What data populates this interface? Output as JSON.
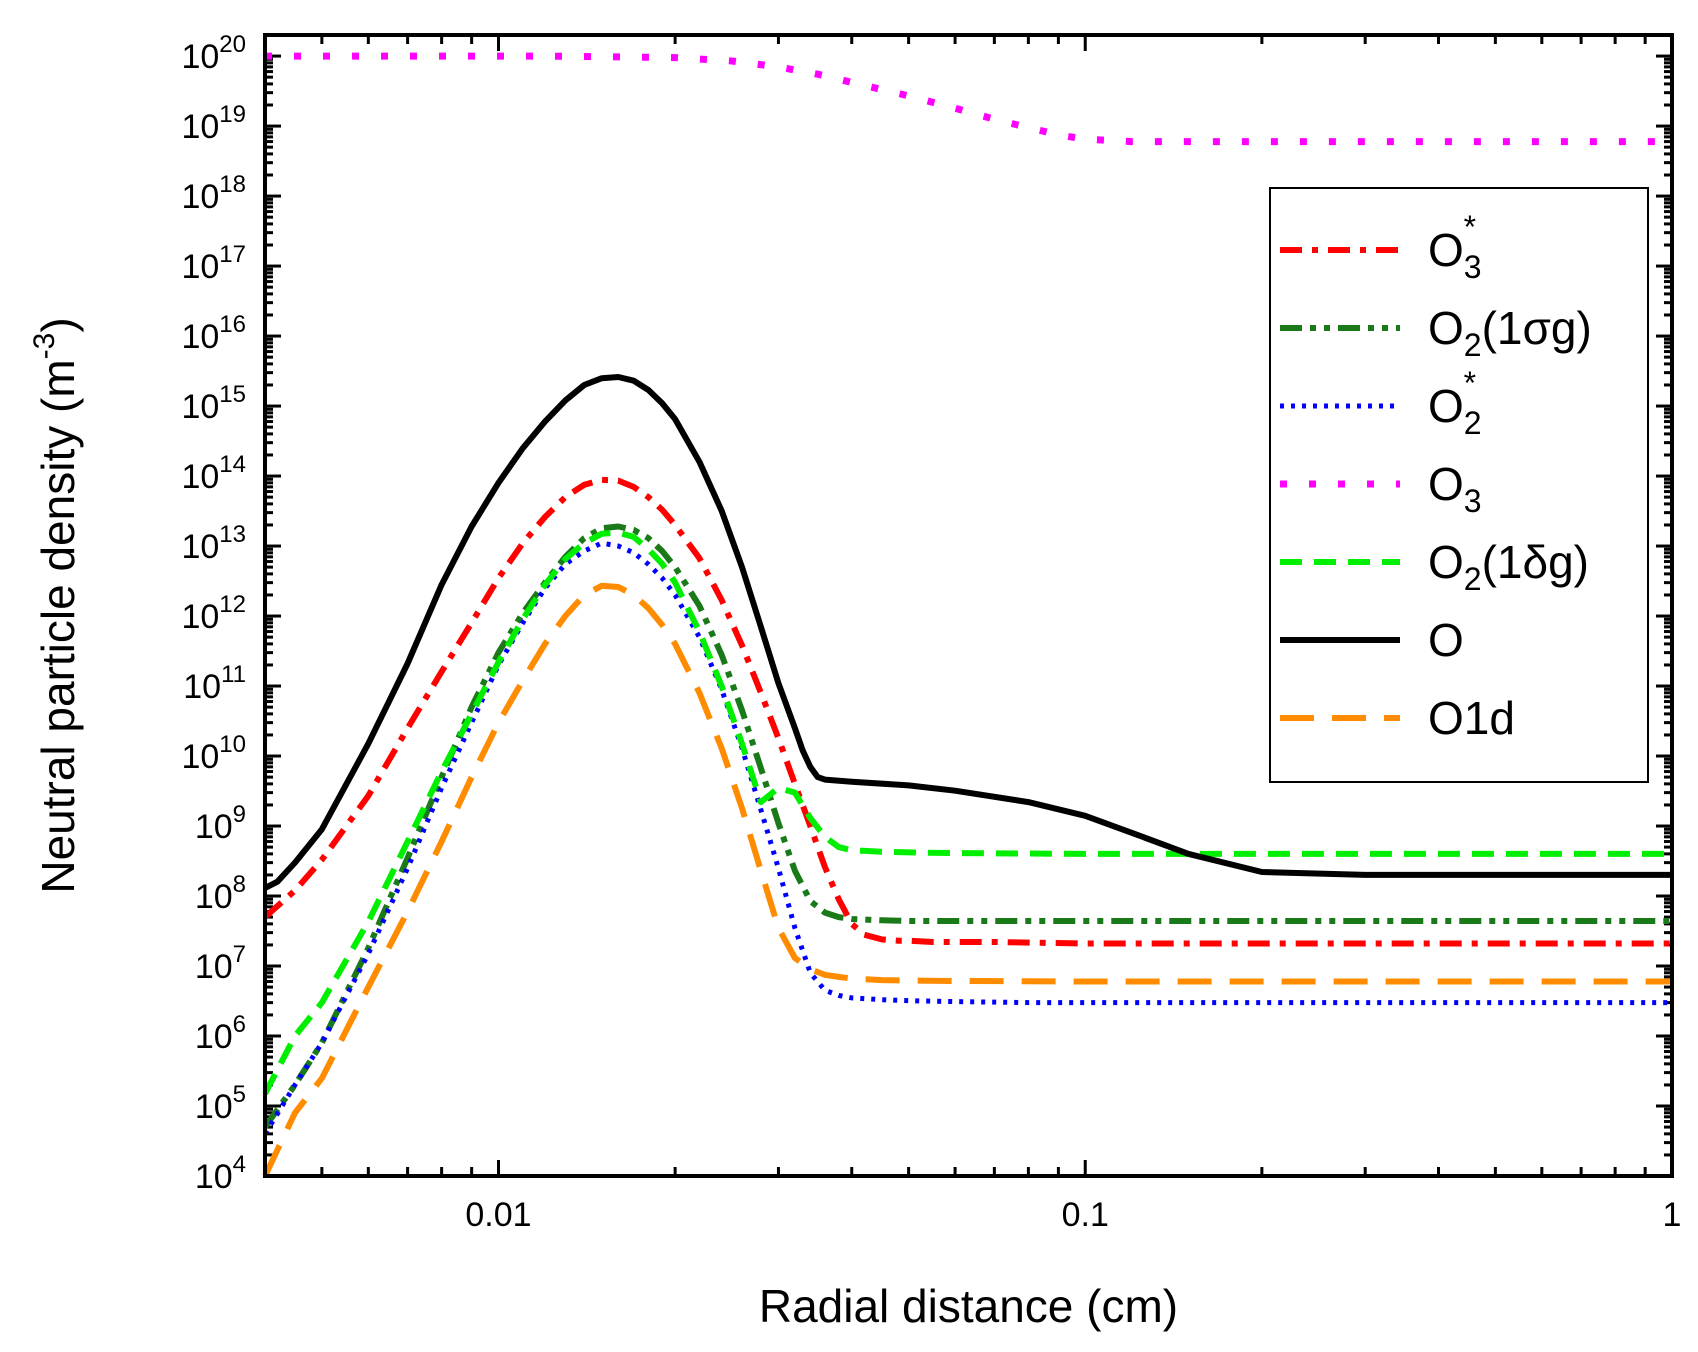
{
  "chart_data": {
    "type": "line",
    "xscale": "log",
    "yscale": "log",
    "xlabel": "Radial distance (cm)",
    "ylabel_main": "Neutral particle density (m",
    "ylabel_sup": "-3",
    "ylabel_close": ")",
    "xlim": [
      0.004,
      1
    ],
    "ylim": [
      10000,
      2e+20
    ],
    "x_tick_labels": [
      {
        "value": 0.01,
        "label": "0.01"
      },
      {
        "value": 0.1,
        "label": "0.1"
      },
      {
        "value": 1,
        "label": "1"
      }
    ],
    "y_tick_labels": [
      {
        "exp": 4,
        "base": "10",
        "sup": "4"
      },
      {
        "exp": 5,
        "base": "10",
        "sup": "5"
      },
      {
        "exp": 6,
        "base": "10",
        "sup": "6"
      },
      {
        "exp": 7,
        "base": "10",
        "sup": "7"
      },
      {
        "exp": 8,
        "base": "10",
        "sup": "8"
      },
      {
        "exp": 9,
        "base": "10",
        "sup": "9"
      },
      {
        "exp": 10,
        "base": "10",
        "sup": "10"
      },
      {
        "exp": 11,
        "base": "10",
        "sup": "11"
      },
      {
        "exp": 12,
        "base": "10",
        "sup": "12"
      },
      {
        "exp": 13,
        "base": "10",
        "sup": "13"
      },
      {
        "exp": 14,
        "base": "10",
        "sup": "14"
      },
      {
        "exp": 15,
        "base": "10",
        "sup": "15"
      },
      {
        "exp": 16,
        "base": "10",
        "sup": "16"
      },
      {
        "exp": 17,
        "base": "10",
        "sup": "17"
      },
      {
        "exp": 18,
        "base": "10",
        "sup": "18"
      },
      {
        "exp": 19,
        "base": "10",
        "sup": "19"
      },
      {
        "exp": 20,
        "base": "10",
        "sup": "20"
      }
    ],
    "legend_position": "top-right",
    "series": [
      {
        "name": "O3*",
        "legend": {
          "main": "O",
          "sub": "3",
          "sup": "*",
          "rest": ""
        },
        "color": "#ff0000",
        "dash": "dash-dot",
        "x": [
          0.004,
          0.0045,
          0.005,
          0.006,
          0.007,
          0.008,
          0.009,
          0.01,
          0.011,
          0.012,
          0.013,
          0.014,
          0.015,
          0.016,
          0.017,
          0.018,
          0.019,
          0.02,
          0.022,
          0.024,
          0.026,
          0.028,
          0.03,
          0.032,
          0.034,
          0.036,
          0.038,
          0.04,
          0.042,
          0.045,
          0.048,
          0.05,
          0.055,
          0.06,
          0.07,
          0.1,
          0.2,
          0.5,
          1.0
        ],
        "y": [
          50000000.0,
          120000000.0,
          330000000.0,
          2700000000.0,
          25000000000.0,
          160000000000.0,
          800000000000.0,
          3500000000000.0,
          11000000000000.0,
          26000000000000.0,
          50000000000000.0,
          75000000000000.0,
          88000000000000.0,
          86000000000000.0,
          70000000000000.0,
          50000000000000.0,
          33000000000000.0,
          20000000000000.0,
          6700000000000.0,
          1700000000000.0,
          380000000000.0,
          80000000000.0,
          18000000000.0,
          4000000000.0,
          1000000000.0,
          260000000.0,
          90000000.0,
          40000000.0,
          28000000.0,
          24000000.0,
          23000000.0,
          23000000.0,
          22000000.0,
          22000000.0,
          22000000.0,
          21000000.0,
          21000000.0,
          21000000.0,
          21000000.0
        ]
      },
      {
        "name": "O2(1σg)",
        "legend": {
          "main": "O",
          "sub": "2",
          "sup": "",
          "rest": "(1σg)"
        },
        "color": "#1a7a1a",
        "dash": "dash-dot-dot",
        "x": [
          0.004,
          0.0045,
          0.005,
          0.006,
          0.007,
          0.008,
          0.009,
          0.01,
          0.011,
          0.012,
          0.013,
          0.014,
          0.015,
          0.016,
          0.017,
          0.018,
          0.019,
          0.02,
          0.022,
          0.024,
          0.026,
          0.028,
          0.03,
          0.032,
          0.034,
          0.036,
          0.038,
          0.04,
          0.045,
          0.05,
          0.06,
          0.08,
          0.1,
          0.2,
          0.5,
          1.0
        ],
        "y": [
          50000.0,
          200000.0,
          800000.0,
          18000000.0,
          350000000.0,
          5000000000.0,
          50000000000.0,
          300000000000.0,
          1100000000000.0,
          3000000000000.0,
          7000000000000.0,
          13000000000000.0,
          18000000000000.0,
          19000000000000.0,
          17000000000000.0,
          13000000000000.0,
          8500000000000.0,
          5000000000000.0,
          1400000000000.0,
          280000000000.0,
          45000000000.0,
          6700000000.0,
          1100000000.0,
          230000000.0,
          85000000.0,
          58000000.0,
          50000000.0,
          47000000.0,
          45000000.0,
          44000000.0,
          44000000.0,
          44000000.0,
          44000000.0,
          44000000.0,
          44000000.0,
          44000000.0
        ]
      },
      {
        "name": "O2*",
        "legend": {
          "main": "O",
          "sub": "2",
          "sup": "*",
          "rest": ""
        },
        "color": "#0000ff",
        "dash": "dot",
        "x": [
          0.004,
          0.0045,
          0.005,
          0.006,
          0.007,
          0.008,
          0.009,
          0.01,
          0.011,
          0.012,
          0.013,
          0.014,
          0.015,
          0.016,
          0.017,
          0.018,
          0.019,
          0.02,
          0.022,
          0.024,
          0.026,
          0.028,
          0.03,
          0.032,
          0.034,
          0.036,
          0.038,
          0.04,
          0.045,
          0.05,
          0.06,
          0.08,
          0.1,
          0.2,
          0.5,
          1.0
        ],
        "y": [
          40000.0,
          200000.0,
          800000.0,
          15000000.0,
          250000000.0,
          3500000000.0,
          30000000000.0,
          200000000000.0,
          800000000000.0,
          2500000000000.0,
          5500000000000.0,
          8500000000000.0,
          11000000000000.0,
          10000000000000.0,
          8000000000000.0,
          5500000000000.0,
          3500000000000.0,
          2000000000000.0,
          500000000000.0,
          90000000000.0,
          13000000000.0,
          1700000000.0,
          250000000.0,
          35000000.0,
          8000000.0,
          4500000.0,
          3800000.0,
          3500000.0,
          3300000.0,
          3200000.0,
          3100000.0,
          3000000.0,
          3000000.0,
          3000000.0,
          3000000.0,
          3000000.0
        ]
      },
      {
        "name": "O3",
        "legend": {
          "main": "O",
          "sub": "3",
          "sup": "",
          "rest": ""
        },
        "color": "#ff00ff",
        "dash": "short-dot",
        "x": [
          0.004,
          0.006,
          0.008,
          0.01,
          0.012,
          0.015,
          0.02,
          0.025,
          0.03,
          0.035,
          0.04,
          0.05,
          0.06,
          0.07,
          0.08,
          0.09,
          0.1,
          0.12,
          0.15,
          0.2,
          0.3,
          0.5,
          1.0
        ],
        "y": [
          1e+20,
          1e+20,
          1e+20,
          1e+20,
          1e+20,
          9.8e+19,
          9.5e+19,
          8.5e+19,
          7e+19,
          5.5e+19,
          4.2e+19,
          2.7e+19,
          1.8e+19,
          1.25e+19,
          9.5e+18,
          7.5e+18,
          6.5e+18,
          6e+18,
          6e+18,
          6e+18,
          6e+18,
          6e+18,
          6e+18
        ]
      },
      {
        "name": "O2(1δg)",
        "legend": {
          "main": "O",
          "sub": "2",
          "sup": "",
          "rest": "(1δg)"
        },
        "color": "#00ee00",
        "dash": "dash",
        "x": [
          0.004,
          0.0045,
          0.005,
          0.006,
          0.007,
          0.008,
          0.009,
          0.01,
          0.011,
          0.012,
          0.013,
          0.014,
          0.015,
          0.016,
          0.017,
          0.018,
          0.019,
          0.02,
          0.022,
          0.024,
          0.026,
          0.028,
          0.03,
          0.032,
          0.034,
          0.036,
          0.038,
          0.04,
          0.045,
          0.05,
          0.06,
          0.1,
          0.2,
          0.5,
          1.0
        ],
        "y": [
          150000.0,
          1000000.0,
          3000000.0,
          43000000.0,
          600000000.0,
          6000000000.0,
          40000000000.0,
          220000000000.0,
          900000000000.0,
          2800000000000.0,
          6500000000000.0,
          11000000000000.0,
          15000000000000.0,
          15500000000000.0,
          13500000000000.0,
          9000000000000.0,
          5600000000000.0,
          3000000000000.0,
          600000000000.0,
          100000000000.0,
          15000000000.0,
          2200000000.0,
          3500000000.0,
          3000000000.0,
          1300000000.0,
          700000000.0,
          500000000.0,
          450000000.0,
          430000000.0,
          420000000.0,
          410000000.0,
          400000000.0,
          400000000.0,
          400000000.0,
          400000000.0
        ]
      },
      {
        "name": "O",
        "legend": {
          "main": "O",
          "sub": "",
          "sup": "",
          "rest": ""
        },
        "color": "#000000",
        "dash": "solid",
        "x": [
          0.004,
          0.0042,
          0.0045,
          0.005,
          0.006,
          0.007,
          0.008,
          0.009,
          0.01,
          0.011,
          0.012,
          0.013,
          0.014,
          0.015,
          0.016,
          0.017,
          0.018,
          0.019,
          0.02,
          0.022,
          0.024,
          0.026,
          0.028,
          0.03,
          0.032,
          0.033,
          0.034,
          0.035,
          0.036,
          0.04,
          0.05,
          0.06,
          0.08,
          0.1,
          0.12,
          0.15,
          0.2,
          0.3,
          0.5,
          1.0
        ],
        "y": [
          130000000.0,
          160000000.0,
          300000000.0,
          900000000.0,
          15000000000.0,
          210000000000.0,
          2800000000000.0,
          19000000000000.0,
          80000000000000.0,
          250000000000000.0,
          600000000000000.0,
          1200000000000000.0,
          2000000000000000.0,
          2500000000000000.0,
          2600000000000000.0,
          2300000000000000.0,
          1700000000000000.0,
          1100000000000000.0,
          650000000000000.0,
          160000000000000.0,
          32000000000000.0,
          5000000000000.0,
          700000000000.0,
          110000000000.0,
          25000000000.0,
          12000000000.0,
          7000000000.0,
          5000000000.0,
          4600000000.0,
          4300000000.0,
          3800000000.0,
          3200000000.0,
          2200000000.0,
          1400000000.0,
          800000000.0,
          400000000.0,
          220000000.0,
          200000000.0,
          200000000.0,
          200000000.0
        ]
      },
      {
        "name": "O1d",
        "legend": {
          "main": "O1d",
          "sub": "",
          "sup": "",
          "rest": ""
        },
        "color": "#ff8c00",
        "dash": "long-dash",
        "x": [
          0.004,
          0.0045,
          0.005,
          0.006,
          0.007,
          0.008,
          0.009,
          0.01,
          0.011,
          0.012,
          0.013,
          0.014,
          0.015,
          0.016,
          0.017,
          0.018,
          0.019,
          0.02,
          0.022,
          0.024,
          0.026,
          0.028,
          0.03,
          0.032,
          0.034,
          0.036,
          0.038,
          0.04,
          0.045,
          0.05,
          0.06,
          0.1,
          0.2,
          0.5,
          1.0
        ],
        "y": [
          10000.0,
          80000.0,
          250000.0,
          5000000.0,
          60000000.0,
          600000000.0,
          5000000000.0,
          30000000000.0,
          120000000000.0,
          400000000000.0,
          1000000000000.0,
          2000000000000.0,
          2700000000000.0,
          2600000000000.0,
          2000000000000.0,
          1300000000000.0,
          750000000000.0,
          400000000000.0,
          80000000000.0,
          13000000000.0,
          1800000000.0,
          230000000.0,
          35000000.0,
          13000000.0,
          9000000.0,
          7500000.0,
          7000000.0,
          6600000.0,
          6300000.0,
          6200000.0,
          6100000.0,
          6000000.0,
          6000000.0,
          6000000.0,
          6000000.0
        ]
      }
    ]
  }
}
